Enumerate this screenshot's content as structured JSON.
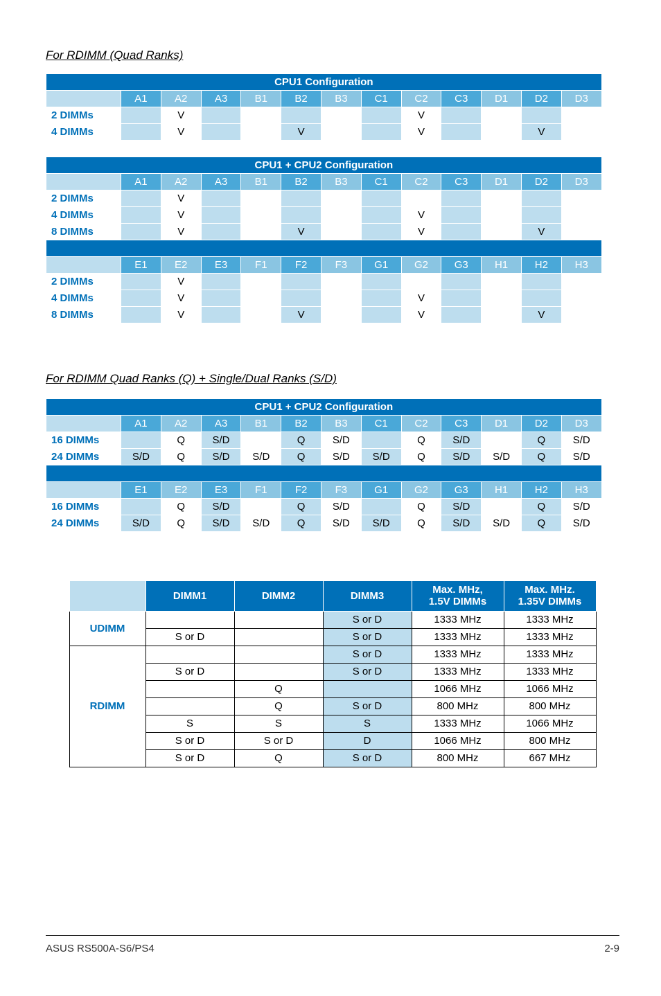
{
  "section1_title": "For RDIMM (Quad Ranks)",
  "section2_title": "For RDIMM Quad Ranks (Q) + Single/Dual Ranks (S/D)",
  "V": "V",
  "Q": "Q",
  "SD": "S/D",
  "slotsA": [
    "A1",
    "A2",
    "A3",
    "B1",
    "B2",
    "B3",
    "C1",
    "C2",
    "C3",
    "D1",
    "D2",
    "D3"
  ],
  "slotsE": [
    "E1",
    "E2",
    "E3",
    "F1",
    "F2",
    "F3",
    "G1",
    "G2",
    "G3",
    "H1",
    "H2",
    "H3"
  ],
  "t1": {
    "title": "CPU1 Configuration",
    "rows": [
      {
        "label": "2 DIMMs",
        "cells": [
          "",
          "V",
          "",
          "",
          "",
          "",
          "",
          "V",
          "",
          "",
          "",
          ""
        ]
      },
      {
        "label": "4 DIMMs",
        "cells": [
          "",
          "V",
          "",
          "",
          "V",
          "",
          "",
          "V",
          "",
          "",
          "V",
          ""
        ]
      }
    ]
  },
  "t2": {
    "title": "CPU1 + CPU2 Configuration",
    "groupA": [
      {
        "label": "2 DIMMs",
        "cells": [
          "",
          "V",
          "",
          "",
          "",
          "",
          "",
          "",
          "",
          "",
          "",
          ""
        ]
      },
      {
        "label": "4 DIMMs",
        "cells": [
          "",
          "V",
          "",
          "",
          "",
          "",
          "",
          "V",
          "",
          "",
          "",
          ""
        ]
      },
      {
        "label": "8 DIMMs",
        "cells": [
          "",
          "V",
          "",
          "",
          "V",
          "",
          "",
          "V",
          "",
          "",
          "V",
          ""
        ]
      }
    ],
    "groupE": [
      {
        "label": "2 DIMMs",
        "cells": [
          "",
          "V",
          "",
          "",
          "",
          "",
          "",
          "",
          "",
          "",
          "",
          ""
        ]
      },
      {
        "label": "4 DIMMs",
        "cells": [
          "",
          "V",
          "",
          "",
          "",
          "",
          "",
          "V",
          "",
          "",
          "",
          ""
        ]
      },
      {
        "label": "8 DIMMs",
        "cells": [
          "",
          "V",
          "",
          "",
          "V",
          "",
          "",
          "V",
          "",
          "",
          "V",
          ""
        ]
      }
    ]
  },
  "t3": {
    "title": "CPU1 + CPU2 Configuration",
    "groupA": [
      {
        "label": "16 DIMMs",
        "cells": [
          "",
          "Q",
          "S/D",
          "",
          "Q",
          "S/D",
          "",
          "Q",
          "S/D",
          "",
          "Q",
          "S/D"
        ]
      },
      {
        "label": "24 DIMMs",
        "cells": [
          "S/D",
          "Q",
          "S/D",
          "S/D",
          "Q",
          "S/D",
          "S/D",
          "Q",
          "S/D",
          "S/D",
          "Q",
          "S/D"
        ]
      }
    ],
    "groupE": [
      {
        "label": "16 DIMMs",
        "cells": [
          "",
          "Q",
          "S/D",
          "",
          "Q",
          "S/D",
          "",
          "Q",
          "S/D",
          "",
          "Q",
          "S/D"
        ]
      },
      {
        "label": "24 DIMMs",
        "cells": [
          "S/D",
          "Q",
          "S/D",
          "S/D",
          "Q",
          "S/D",
          "S/D",
          "Q",
          "S/D",
          "S/D",
          "Q",
          "S/D"
        ]
      }
    ]
  },
  "speed": {
    "headers": [
      "DIMM1",
      "DIMM2",
      "DIMM3",
      "Max. MHz,\n1.5V DIMMs",
      "Max. MHz.\n1.35V DIMMs"
    ],
    "groups": [
      {
        "label": "UDIMM",
        "rows": [
          {
            "d": [
              "",
              "",
              "S or D",
              "1333 MHz",
              "1333 MHz"
            ]
          },
          {
            "d": [
              "S or D",
              "",
              "S or D",
              "1333 MHz",
              "1333 MHz"
            ]
          }
        ]
      },
      {
        "label": "RDIMM",
        "rows": [
          {
            "d": [
              "",
              "",
              "S or D",
              "1333 MHz",
              "1333 MHz"
            ]
          },
          {
            "d": [
              "S or D",
              "",
              "S or D",
              "1333 MHz",
              "1333 MHz"
            ]
          },
          {
            "d": [
              "",
              "Q",
              "",
              "1066 MHz",
              "1066 MHz"
            ]
          },
          {
            "d": [
              "",
              "Q",
              "S or D",
              "800 MHz",
              "800 MHz"
            ]
          },
          {
            "d": [
              "S",
              "S",
              "S",
              "1333 MHz",
              "1066 MHz"
            ]
          },
          {
            "d": [
              "S or D",
              "S or D",
              "D",
              "1066 MHz",
              "800 MHz"
            ]
          },
          {
            "d": [
              "S or D",
              "Q",
              "S or D",
              "800 MHz",
              "667 MHz"
            ]
          }
        ]
      }
    ]
  },
  "footer": {
    "left": "ASUS RS500A-S6/PS4",
    "right": "2-9"
  }
}
